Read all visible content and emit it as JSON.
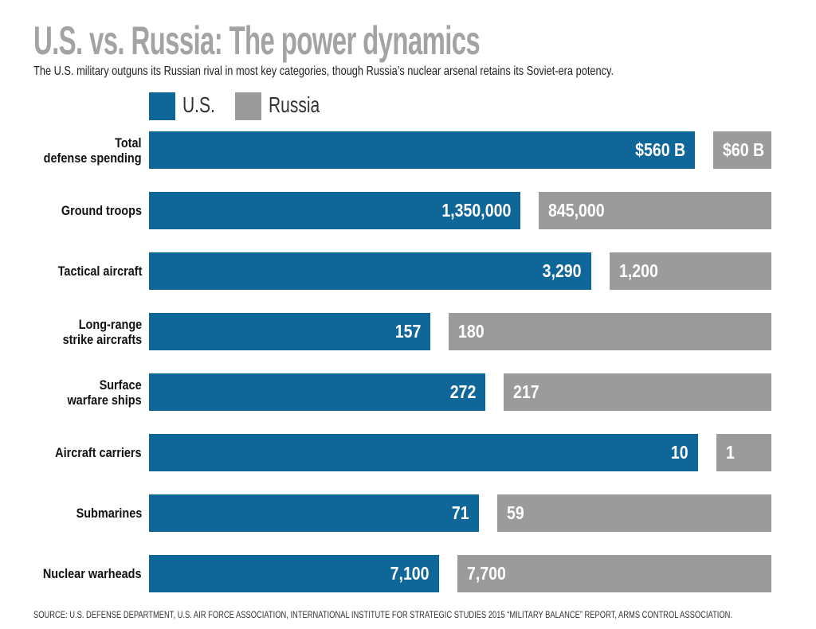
{
  "chart_data": {
    "type": "bar",
    "title": "U.S. vs. Russia: The power dynamics",
    "subtitle": "The U.S. military outguns its Russian rival in most key categories, though Russia’s nuclear arsenal retains its Soviet-era potency.",
    "legend": [
      {
        "name": "U.S.",
        "color": "#0f6699"
      },
      {
        "name": "Russia",
        "color": "#9b9b9b"
      }
    ],
    "categories": [
      "Total\ndefense spending",
      "Ground troops",
      "Tactical aircraft",
      "Long-range\nstrike aircrafts",
      "Surface\nwarfare ships",
      "Aircraft carriers",
      "Submarines",
      "Nuclear warheads"
    ],
    "series": [
      {
        "name": "U.S.",
        "values": [
          560,
          1350000,
          3290,
          157,
          272,
          10,
          71,
          7100
        ],
        "labels": [
          "$560 B",
          "1,350,000",
          "3,290",
          "157",
          "272",
          "10",
          "71",
          "7,100"
        ]
      },
      {
        "name": "Russia",
        "values": [
          60,
          845000,
          1200,
          180,
          217,
          1,
          59,
          7700
        ],
        "labels": [
          "$60 B",
          "845,000",
          "1,200",
          "180",
          "217",
          "1",
          "59",
          "7,700"
        ]
      }
    ],
    "layout_note": "100% stacked horizontal bars per category",
    "source": "SOURCE: U.S. DEFENSE DEPARTMENT, U.S. AIR FORCE ASSOCIATION, INTERNATIONAL INSTITUTE FOR STRATEGIC STUDIES 2015 “MILITARY BALANCE” REPORT, ARMS CONTROL ASSOCIATION."
  }
}
